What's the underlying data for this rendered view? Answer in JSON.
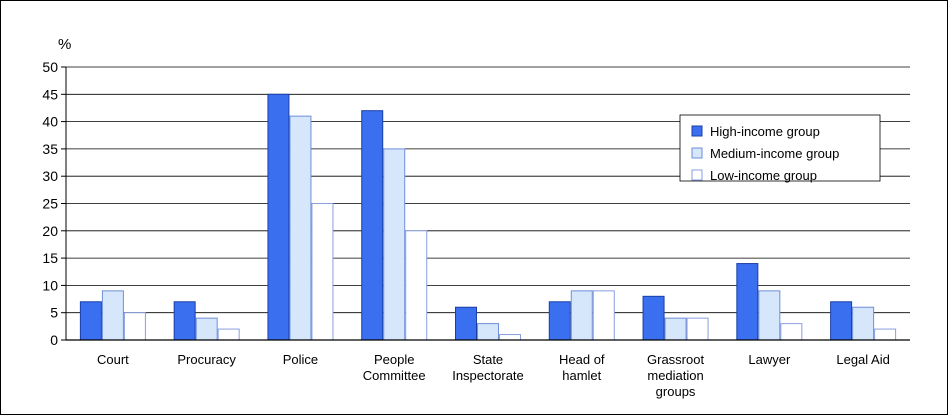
{
  "chart_data": {
    "type": "bar",
    "ylabel": "%",
    "ylim": [
      0,
      50
    ],
    "yticks": [
      0,
      5,
      10,
      15,
      20,
      25,
      30,
      35,
      40,
      45,
      50
    ],
    "grid": true,
    "legend_position": "top-right",
    "categories": [
      [
        "Court"
      ],
      [
        "Procuracy"
      ],
      [
        "Police"
      ],
      [
        "People",
        "Committee"
      ],
      [
        "State",
        "Inspectorate"
      ],
      [
        "Head of",
        "hamlet"
      ],
      [
        "Grassroot",
        "mediation",
        "groups"
      ],
      [
        "Lawyer"
      ],
      [
        "Legal Aid"
      ]
    ],
    "series": [
      {
        "name": "High-income group",
        "color": "#3a6ff0",
        "stroke": "#1a3fa8",
        "values": [
          7,
          7,
          45,
          42,
          6,
          7,
          8,
          14,
          7
        ]
      },
      {
        "name": "Medium-income group",
        "color": "#d6e6fb",
        "stroke": "#6f8fd8",
        "values": [
          9,
          4,
          41,
          35,
          3,
          9,
          4,
          9,
          6
        ]
      },
      {
        "name": "Low-income group",
        "color": "#ffffff",
        "stroke": "#8a9ee0",
        "values": [
          5,
          2,
          25,
          20,
          1,
          9,
          4,
          3,
          2
        ]
      }
    ]
  }
}
